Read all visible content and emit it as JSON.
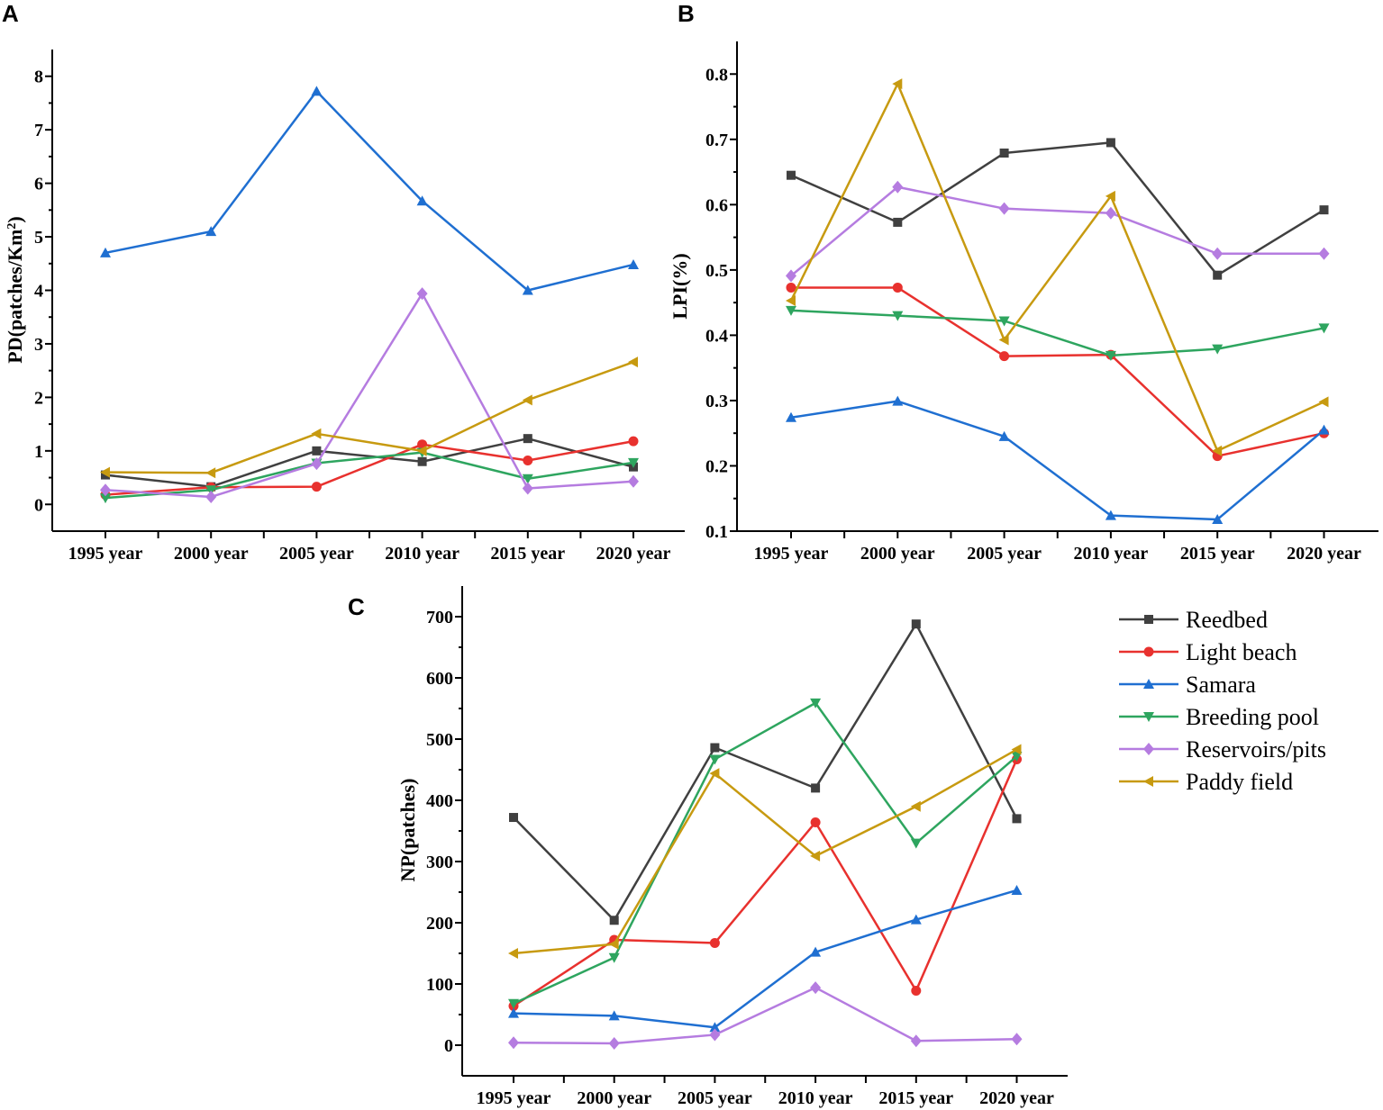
{
  "colors": {
    "Reedbed": "#404040",
    "Light beach": "#e8312e",
    "Samara": "#1f6fd1",
    "Breeding pool": "#2ea55f",
    "Reservoirs/pits": "#b57ce0",
    "Paddy field": "#c79a10"
  },
  "legend": {
    "items": [
      {
        "name": "Reedbed",
        "marker": "square"
      },
      {
        "name": "Light beach",
        "marker": "circle"
      },
      {
        "name": "Samara",
        "marker": "triangle-up"
      },
      {
        "name": "Breeding pool",
        "marker": "triangle-down"
      },
      {
        "name": "Reservoirs/pits",
        "marker": "diamond"
      },
      {
        "name": "Paddy field",
        "marker": "triangle-left"
      }
    ]
  },
  "chart_data": [
    {
      "panel": "A",
      "type": "line",
      "ylabel_main": "PD(patches/Km",
      "ylabel_sup": "2",
      "ylabel_end": ")",
      "xlabel": "",
      "ylim": [
        -0.5,
        8.5
      ],
      "yticks": [
        0,
        1,
        2,
        3,
        4,
        5,
        6,
        7,
        8
      ],
      "ytick_labels": [
        "0",
        "1",
        "2",
        "3",
        "4",
        "5",
        "6",
        "7",
        "8"
      ],
      "categories": [
        "1995 year",
        "2000 year",
        "2005 year",
        "2010 year",
        "2015 year",
        "2020 year"
      ],
      "series": [
        {
          "name": "Reedbed",
          "marker": "square",
          "values": [
            0.55,
            0.33,
            1.0,
            0.8,
            1.23,
            0.7
          ]
        },
        {
          "name": "Light beach",
          "marker": "circle",
          "values": [
            0.18,
            0.32,
            0.33,
            1.12,
            0.82,
            1.18
          ]
        },
        {
          "name": "Samara",
          "marker": "triangle-up",
          "values": [
            4.7,
            5.1,
            7.72,
            5.67,
            4.0,
            4.48
          ]
        },
        {
          "name": "Breeding pool",
          "marker": "triangle-down",
          "values": [
            0.12,
            0.27,
            0.77,
            0.97,
            0.48,
            0.78
          ]
        },
        {
          "name": "Reservoirs/pits",
          "marker": "diamond",
          "values": [
            0.27,
            0.14,
            0.76,
            3.94,
            0.3,
            0.43
          ]
        },
        {
          "name": "Paddy field",
          "marker": "triangle-left",
          "values": [
            0.6,
            0.59,
            1.32,
            1.0,
            1.95,
            2.66
          ]
        }
      ]
    },
    {
      "panel": "B",
      "type": "line",
      "ylabel_main": "LPI(%)",
      "ylabel_sup": "",
      "ylabel_end": "",
      "xlabel": "",
      "ylim": [
        0.1,
        0.85
      ],
      "yticks": [
        0.1,
        0.2,
        0.3,
        0.4,
        0.5,
        0.6,
        0.7,
        0.8
      ],
      "ytick_labels": [
        "0.1",
        "0.2",
        "0.3",
        "0.4",
        "0.5",
        "0.6",
        "0.7",
        "0.8"
      ],
      "categories": [
        "1995 year",
        "2000 year",
        "2005 year",
        "2010 year",
        "2015 year",
        "2020 year"
      ],
      "series": [
        {
          "name": "Reedbed",
          "marker": "square",
          "values": [
            0.645,
            0.573,
            0.679,
            0.695,
            0.492,
            0.592
          ]
        },
        {
          "name": "Light beach",
          "marker": "circle",
          "values": [
            0.473,
            0.473,
            0.368,
            0.37,
            0.215,
            0.25
          ]
        },
        {
          "name": "Samara",
          "marker": "triangle-up",
          "values": [
            0.274,
            0.299,
            0.245,
            0.124,
            0.118,
            0.255
          ]
        },
        {
          "name": "Breeding pool",
          "marker": "triangle-down",
          "values": [
            0.438,
            0.43,
            0.422,
            0.369,
            0.379,
            0.411
          ]
        },
        {
          "name": "Reservoirs/pits",
          "marker": "diamond",
          "values": [
            0.491,
            0.627,
            0.594,
            0.587,
            0.525,
            0.525
          ]
        },
        {
          "name": "Paddy field",
          "marker": "triangle-left",
          "values": [
            0.453,
            0.785,
            0.393,
            0.613,
            0.223,
            0.298
          ]
        }
      ]
    },
    {
      "panel": "C",
      "type": "line",
      "ylabel_main": "NP(patches)",
      "ylabel_sup": "",
      "ylabel_end": "",
      "xlabel": "",
      "ylim": [
        -50,
        750
      ],
      "yticks": [
        0,
        100,
        200,
        300,
        400,
        500,
        600,
        700
      ],
      "ytick_labels": [
        "0",
        "100",
        "200",
        "300",
        "400",
        "500",
        "600",
        "700"
      ],
      "categories": [
        "1995 year",
        "2000 year",
        "2005 year",
        "2010 year",
        "2015 year",
        "2020 year"
      ],
      "series": [
        {
          "name": "Reedbed",
          "marker": "square",
          "values": [
            372,
            204,
            486,
            420,
            688,
            370
          ]
        },
        {
          "name": "Light beach",
          "marker": "circle",
          "values": [
            64,
            172,
            167,
            364,
            89,
            467
          ]
        },
        {
          "name": "Samara",
          "marker": "triangle-up",
          "values": [
            52,
            48,
            29,
            152,
            205,
            253
          ]
        },
        {
          "name": "Breeding pool",
          "marker": "triangle-down",
          "values": [
            68,
            143,
            467,
            559,
            330,
            472
          ]
        },
        {
          "name": "Reservoirs/pits",
          "marker": "diamond",
          "values": [
            4,
            3,
            17,
            94,
            7,
            10
          ]
        },
        {
          "name": "Paddy field",
          "marker": "triangle-left",
          "values": [
            150,
            165,
            444,
            309,
            390,
            483
          ]
        }
      ]
    }
  ]
}
